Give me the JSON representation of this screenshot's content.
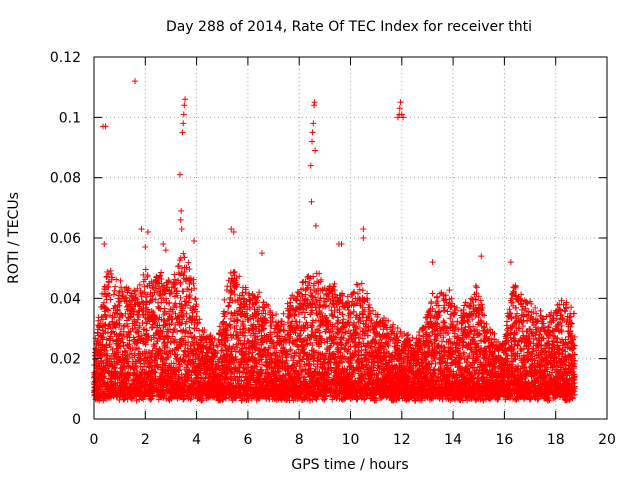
{
  "chart_data": {
    "type": "scatter",
    "title": "Day 288 of 2014, Rate Of TEC Index for receiver thti",
    "xlabel": "GPS time / hours",
    "ylabel": "ROTI / TECUs",
    "xlim": [
      0,
      20
    ],
    "ylim": [
      0,
      0.12
    ],
    "grid": true,
    "marker": "+",
    "x_ticks": [
      0,
      2,
      4,
      6,
      8,
      10,
      12,
      14,
      16,
      18,
      20
    ],
    "x_tick_labels": [
      "0",
      "2",
      "4",
      "6",
      "8",
      "10",
      "12",
      "14",
      "16",
      "18",
      "20"
    ],
    "y_ticks": [
      0,
      0.02,
      0.04,
      0.06,
      0.08,
      0.1,
      0.12
    ],
    "y_tick_labels": [
      "0",
      "0.02",
      "0.04",
      "0.06",
      "0.08",
      "0.1",
      "0.12"
    ],
    "series": [
      {
        "name": "ROTI",
        "color": "#ff0000",
        "x_range": [
          0,
          18.75
        ],
        "band_floor": 0.008,
        "envelope": [
          [
            0.0,
            0.022
          ],
          [
            0.3,
            0.04
          ],
          [
            0.5,
            0.05
          ],
          [
            1.0,
            0.045
          ],
          [
            1.5,
            0.042
          ],
          [
            2.0,
            0.05
          ],
          [
            2.5,
            0.048
          ],
          [
            3.0,
            0.045
          ],
          [
            3.4,
            0.055
          ],
          [
            3.8,
            0.05
          ],
          [
            4.2,
            0.03
          ],
          [
            4.8,
            0.025
          ],
          [
            5.3,
            0.05
          ],
          [
            5.8,
            0.045
          ],
          [
            6.5,
            0.04
          ],
          [
            7.2,
            0.032
          ],
          [
            8.0,
            0.045
          ],
          [
            8.6,
            0.05
          ],
          [
            9.2,
            0.045
          ],
          [
            9.8,
            0.04
          ],
          [
            10.4,
            0.045
          ],
          [
            11.0,
            0.035
          ],
          [
            11.8,
            0.03
          ],
          [
            12.5,
            0.025
          ],
          [
            13.2,
            0.04
          ],
          [
            13.8,
            0.042
          ],
          [
            14.3,
            0.035
          ],
          [
            14.9,
            0.045
          ],
          [
            15.4,
            0.03
          ],
          [
            16.0,
            0.025
          ],
          [
            16.3,
            0.045
          ],
          [
            16.8,
            0.04
          ],
          [
            17.3,
            0.035
          ],
          [
            17.8,
            0.035
          ],
          [
            18.3,
            0.04
          ],
          [
            18.75,
            0.035
          ]
        ],
        "outliers": [
          {
            "x": 0.35,
            "y": 0.097
          },
          {
            "x": 0.45,
            "y": 0.097
          },
          {
            "x": 0.4,
            "y": 0.058
          },
          {
            "x": 1.6,
            "y": 0.112
          },
          {
            "x": 1.85,
            "y": 0.063
          },
          {
            "x": 2.1,
            "y": 0.062
          },
          {
            "x": 2.0,
            "y": 0.057
          },
          {
            "x": 2.7,
            "y": 0.058
          },
          {
            "x": 2.8,
            "y": 0.056
          },
          {
            "x": 3.35,
            "y": 0.081
          },
          {
            "x": 3.4,
            "y": 0.069
          },
          {
            "x": 3.38,
            "y": 0.066
          },
          {
            "x": 3.42,
            "y": 0.063
          },
          {
            "x": 3.45,
            "y": 0.095
          },
          {
            "x": 3.48,
            "y": 0.098
          },
          {
            "x": 3.5,
            "y": 0.101
          },
          {
            "x": 3.52,
            "y": 0.104
          },
          {
            "x": 3.55,
            "y": 0.106
          },
          {
            "x": 3.9,
            "y": 0.059
          },
          {
            "x": 5.35,
            "y": 0.063
          },
          {
            "x": 5.45,
            "y": 0.062
          },
          {
            "x": 6.55,
            "y": 0.055
          },
          {
            "x": 8.45,
            "y": 0.084
          },
          {
            "x": 8.5,
            "y": 0.092
          },
          {
            "x": 8.52,
            "y": 0.095
          },
          {
            "x": 8.55,
            "y": 0.098
          },
          {
            "x": 8.58,
            "y": 0.104
          },
          {
            "x": 8.6,
            "y": 0.105
          },
          {
            "x": 8.48,
            "y": 0.072
          },
          {
            "x": 8.62,
            "y": 0.089
          },
          {
            "x": 8.65,
            "y": 0.064
          },
          {
            "x": 9.55,
            "y": 0.058
          },
          {
            "x": 9.65,
            "y": 0.058
          },
          {
            "x": 10.5,
            "y": 0.063
          },
          {
            "x": 11.85,
            "y": 0.1
          },
          {
            "x": 11.9,
            "y": 0.101
          },
          {
            "x": 11.92,
            "y": 0.103
          },
          {
            "x": 11.95,
            "y": 0.105
          },
          {
            "x": 12.0,
            "y": 0.101
          },
          {
            "x": 12.05,
            "y": 0.1
          },
          {
            "x": 13.2,
            "y": 0.052
          },
          {
            "x": 15.1,
            "y": 0.054
          },
          {
            "x": 16.25,
            "y": 0.052
          },
          {
            "x": 10.5,
            "y": 0.06
          }
        ]
      }
    ]
  }
}
